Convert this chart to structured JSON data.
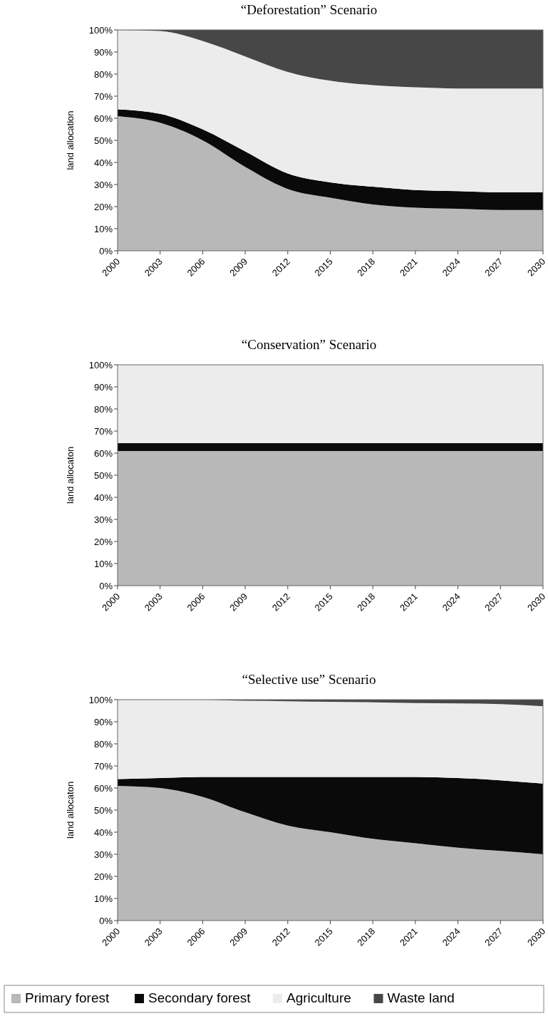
{
  "chart_data": [
    {
      "type": "area",
      "title": "“Deforestation” Scenario",
      "ylabel": "land allocation",
      "stacked": true,
      "x": [
        2000,
        2003,
        2006,
        2009,
        2012,
        2015,
        2018,
        2021,
        2024,
        2027,
        2030
      ],
      "xlim": [
        2000,
        2030
      ],
      "xticks": [
        2000,
        2003,
        2006,
        2009,
        2012,
        2015,
        2018,
        2021,
        2024,
        2027,
        2030
      ],
      "ylim": [
        0,
        100
      ],
      "yticks": [
        {
          "value": 0,
          "label": "0%"
        },
        {
          "value": 10,
          "label": "10%"
        },
        {
          "value": 20,
          "label": "20%"
        },
        {
          "value": 30,
          "label": "30%"
        },
        {
          "value": 40,
          "label": "40%"
        },
        {
          "value": 50,
          "label": "50%"
        },
        {
          "value": 60,
          "label": "60%"
        },
        {
          "value": 70,
          "label": "70%"
        },
        {
          "value": 80,
          "label": "80%"
        },
        {
          "value": 90,
          "label": "90%"
        },
        {
          "value": 100,
          "label": "100%"
        }
      ],
      "grid": false,
      "legend": false,
      "series": [
        {
          "color": "#b8b8b8",
          "values": [
            61,
            58,
            50,
            38,
            28,
            24,
            21,
            19.5,
            19,
            18.5,
            18.5
          ]
        },
        {
          "color": "#0a0a0a",
          "values": [
            3,
            4,
            5,
            7,
            7,
            7,
            8,
            8,
            8,
            8,
            8
          ]
        },
        {
          "color": "#ececec",
          "values": [
            36,
            37.5,
            40,
            43,
            46,
            46,
            46,
            46.5,
            46.5,
            47,
            47
          ]
        },
        {
          "color": "#474747",
          "values": [
            0,
            0.5,
            5,
            12,
            19,
            23,
            25,
            26,
            26.5,
            26.5,
            26.5
          ]
        }
      ]
    },
    {
      "type": "area",
      "title": "“Conservation” Scenario",
      "ylabel": "land allocaton",
      "stacked": true,
      "x": [
        2000,
        2003,
        2006,
        2009,
        2012,
        2015,
        2018,
        2021,
        2024,
        2027,
        2030
      ],
      "xlim": [
        2000,
        2030
      ],
      "xticks": [
        2000,
        2003,
        2006,
        2009,
        2012,
        2015,
        2018,
        2021,
        2024,
        2027,
        2030
      ],
      "ylim": [
        0,
        100
      ],
      "yticks": [
        {
          "value": 0,
          "label": "0%"
        },
        {
          "value": 10,
          "label": "10%"
        },
        {
          "value": 20,
          "label": "20%"
        },
        {
          "value": 30,
          "label": "30%"
        },
        {
          "value": 40,
          "label": "40%"
        },
        {
          "value": 50,
          "label": "50%"
        },
        {
          "value": 60,
          "label": "60%"
        },
        {
          "value": 70,
          "label": "70%"
        },
        {
          "value": 80,
          "label": "80%"
        },
        {
          "value": 90,
          "label": "90%"
        },
        {
          "value": 100,
          "label": "100%"
        }
      ],
      "grid": false,
      "legend": false,
      "series": [
        {
          "color": "#b8b8b8",
          "values": [
            61,
            61,
            61,
            61,
            61,
            61,
            61,
            61,
            61,
            61,
            61
          ]
        },
        {
          "color": "#0a0a0a",
          "values": [
            3.5,
            3.5,
            3.5,
            3.5,
            3.5,
            3.5,
            3.5,
            3.5,
            3.5,
            3.5,
            3.5
          ]
        },
        {
          "color": "#ececec",
          "values": [
            35.5,
            35.5,
            35.5,
            35.5,
            35.5,
            35.5,
            35.5,
            35.5,
            35.5,
            35.5,
            35.5
          ]
        }
      ]
    },
    {
      "type": "area",
      "title": "“Selective use” Scenario",
      "ylabel": "land allocaton",
      "stacked": true,
      "x": [
        2000,
        2003,
        2006,
        2009,
        2012,
        2015,
        2018,
        2021,
        2024,
        2027,
        2030
      ],
      "xlim": [
        2000,
        2030
      ],
      "xticks": [
        2000,
        2003,
        2006,
        2009,
        2012,
        2015,
        2018,
        2021,
        2024,
        2027,
        2030
      ],
      "ylim": [
        0,
        100
      ],
      "yticks": [
        {
          "value": 0,
          "label": "0%"
        },
        {
          "value": 10,
          "label": "10%"
        },
        {
          "value": 20,
          "label": "20%"
        },
        {
          "value": 30,
          "label": "30%"
        },
        {
          "value": 40,
          "label": "40%"
        },
        {
          "value": 50,
          "label": "50%"
        },
        {
          "value": 60,
          "label": "60%"
        },
        {
          "value": 70,
          "label": "70%"
        },
        {
          "value": 80,
          "label": "80%"
        },
        {
          "value": 90,
          "label": "90%"
        },
        {
          "value": 100,
          "label": "100%"
        }
      ],
      "grid": false,
      "legend": "bottom",
      "series": [
        {
          "name": "Primary forest",
          "color": "#b8b8b8",
          "values": [
            61,
            60,
            56,
            49,
            43,
            40,
            37,
            35,
            33,
            31.5,
            30
          ]
        },
        {
          "name": "Secondary forest",
          "color": "#0a0a0a",
          "values": [
            3,
            4.5,
            9,
            16,
            22,
            25,
            28,
            30,
            31.5,
            32,
            32
          ]
        },
        {
          "name": "Agriculture",
          "color": "#ececec",
          "values": [
            36,
            35.5,
            35,
            34.5,
            34.3,
            34,
            33.8,
            33.5,
            33.8,
            34.5,
            35
          ]
        },
        {
          "name": "Waste land",
          "color": "#474747",
          "values": [
            0,
            0,
            0,
            0.5,
            0.7,
            1,
            1.2,
            1.5,
            1.7,
            2,
            3
          ]
        }
      ]
    }
  ]
}
